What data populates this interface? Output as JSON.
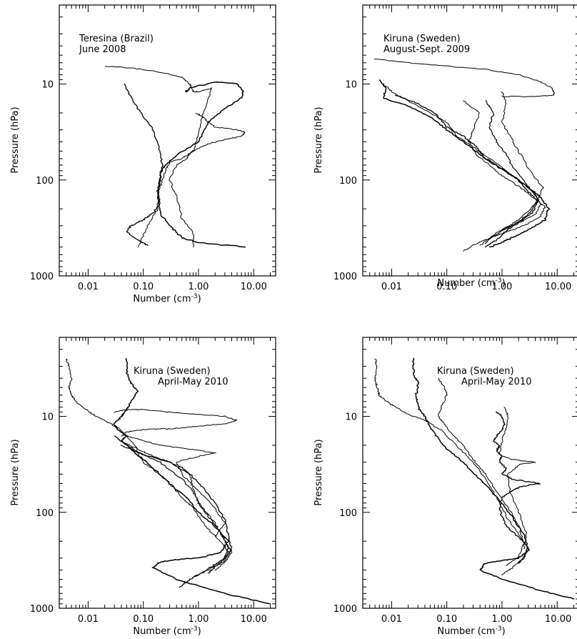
{
  "chart_data": [
    {
      "type": "line",
      "annotation": [
        "Teresina (Brazil)",
        "June 2008"
      ],
      "xlabel": "Number (cm",
      "xlabel_exp": "-3",
      "xlabel_close": ")",
      "ylabel": "Pressure (hPa)",
      "x_scale": "log",
      "y_scale": "log",
      "y_inverted": true,
      "xlim": [
        0.003,
        25
      ],
      "ylim": [
        1000,
        1.5
      ],
      "x_ticks": [
        0.01,
        0.1,
        1,
        10
      ],
      "x_tick_labels": [
        "0.01",
        "0.10",
        "1.00",
        "10.00"
      ],
      "y_ticks": [
        10,
        100,
        1000
      ],
      "y_tick_labels": [
        "10",
        "100",
        "1000"
      ],
      "grid": false,
      "series": [
        {
          "x": [
            0.02,
            0.06,
            0.2,
            0.5,
            0.7,
            0.8,
            1.0,
            1.8,
            1.2,
            1.0,
            0.8,
            0.5,
            0.3,
            0.25,
            0.22,
            0.2,
            0.18,
            0.12,
            0.08
          ],
          "y": [
            6.5,
            6.8,
            7.5,
            8.5,
            10,
            12,
            12,
            11,
            20,
            35,
            50,
            60,
            65,
            80,
            100,
            120,
            200,
            300,
            500
          ]
        },
        {
          "x": [
            0.6,
            0.7,
            2.0,
            5.0,
            6.5,
            6.0,
            3.0,
            1.5,
            1.0,
            0.4,
            0.25,
            0.2,
            0.2,
            0.18,
            0.2,
            0.3,
            0.5,
            1.0,
            7.0
          ],
          "y": [
            12,
            11,
            9.5,
            10,
            12,
            14,
            18,
            25,
            40,
            55,
            70,
            85,
            100,
            150,
            220,
            300,
            400,
            450,
            500
          ]
        },
        {
          "x": [
            0.9,
            1.2,
            1.5,
            2.0,
            5.0,
            7.0,
            6.0,
            3.0,
            1.5,
            0.8,
            0.6,
            0.4,
            0.3,
            0.4,
            0.5,
            0.8,
            0.8
          ],
          "y": [
            20,
            22,
            25,
            28,
            30,
            32,
            35,
            38,
            42,
            50,
            60,
            70,
            100,
            150,
            250,
            350,
            500
          ]
        },
        {
          "x": [
            0.045,
            0.06,
            0.09,
            0.15,
            0.2,
            0.22,
            0.2,
            0.18,
            0.2,
            0.15,
            0.1,
            0.06,
            0.05,
            0.08,
            0.12
          ],
          "y": [
            10,
            14,
            20,
            30,
            50,
            70,
            100,
            130,
            180,
            220,
            260,
            300,
            350,
            420,
            480
          ]
        }
      ]
    },
    {
      "type": "line",
      "annotation": [
        "Kiruna (Sweden)",
        "August-Sept. 2009"
      ],
      "xlabel": "Number (cm",
      "xlabel_exp": "-3",
      "xlabel_close": ")",
      "ylabel": "Pressure (hPa)",
      "x_scale": "log",
      "y_scale": "log",
      "y_inverted": true,
      "xlim": [
        0.003,
        25
      ],
      "ylim": [
        1000,
        1.5
      ],
      "x_ticks": [
        0.01,
        0.1,
        1,
        10
      ],
      "x_tick_labels": [
        "0.01",
        "0.10",
        "1.00",
        "10.00"
      ],
      "y_ticks": [
        10,
        100,
        1000
      ],
      "y_tick_labels": [
        "10",
        "100",
        "1000"
      ],
      "grid": false,
      "series": [
        {
          "x": [
            0.005,
            0.02,
            0.1,
            0.5,
            2.0,
            5.0,
            8.0,
            9.0,
            4.0,
            1.0
          ],
          "y": [
            5.5,
            6.0,
            6.5,
            7.0,
            8.0,
            9.5,
            11,
            13,
            13.5,
            13.5
          ]
        },
        {
          "x": [
            0.006,
            0.008,
            0.007,
            0.02,
            0.05,
            0.1,
            0.2,
            0.4,
            0.8,
            1.5,
            3.0,
            5.0,
            7.0,
            6.0,
            4.0,
            2.5,
            1.5,
            1.0,
            0.6
          ],
          "y": [
            9,
            11,
            14,
            17,
            22,
            30,
            40,
            55,
            70,
            90,
            120,
            150,
            200,
            260,
            300,
            350,
            400,
            450,
            500
          ]
        },
        {
          "x": [
            0.007,
            0.01,
            0.02,
            0.05,
            0.1,
            0.15,
            0.3,
            0.6,
            1.2,
            2.5,
            4.0,
            5.0,
            4.0,
            2.0,
            1.0,
            0.6,
            0.4
          ],
          "y": [
            10,
            12,
            15,
            20,
            25,
            35,
            45,
            60,
            80,
            110,
            140,
            180,
            230,
            280,
            330,
            400,
            480
          ]
        },
        {
          "x": [
            0.012,
            0.03,
            0.06,
            0.1,
            0.2,
            0.35,
            0.5,
            0.9,
            1.8,
            3.0,
            4.5,
            3.5,
            2.0,
            1.2,
            0.8,
            0.5
          ],
          "y": [
            13,
            16,
            20,
            28,
            35,
            45,
            60,
            75,
            95,
            130,
            170,
            220,
            280,
            340,
            420,
            500
          ]
        },
        {
          "x": [
            0.2,
            0.4,
            0.3,
            0.25,
            0.35,
            0.6,
            1.0,
            2.2,
            3.5,
            6.0,
            5.0,
            2.5,
            1.0,
            0.4,
            0.2
          ],
          "y": [
            15,
            20,
            30,
            40,
            55,
            70,
            90,
            120,
            150,
            190,
            240,
            300,
            360,
            440,
            550
          ]
        },
        {
          "x": [
            0.5,
            0.7,
            0.6,
            0.8,
            1.2,
            1.6,
            2.8,
            4.5,
            3.0,
            1.5,
            0.7,
            0.5
          ],
          "y": [
            15,
            20,
            28,
            40,
            55,
            75,
            110,
            160,
            230,
            300,
            380,
            460
          ]
        },
        {
          "x": [
            1.0,
            1.2,
            1.0,
            1.4,
            2.0,
            3.2,
            5.5,
            4.0,
            2.0,
            1.0
          ],
          "y": [
            12,
            16,
            25,
            35,
            50,
            80,
            120,
            180,
            260,
            330
          ]
        }
      ]
    },
    {
      "type": "line",
      "annotation": [
        "Kiruna (Sweden)",
        "April-May 2010"
      ],
      "xlabel": "Number (cm",
      "xlabel_exp": "-3",
      "xlabel_close": ")",
      "ylabel": "Pressure (hPa)",
      "x_scale": "log",
      "y_scale": "log",
      "y_inverted": true,
      "xlim": [
        0.003,
        25
      ],
      "ylim": [
        1000,
        1.5
      ],
      "x_ticks": [
        0.01,
        0.1,
        1,
        10
      ],
      "x_tick_labels": [
        "0.01",
        "0.10",
        "1.00",
        "10.00"
      ],
      "y_ticks": [
        10,
        100,
        1000
      ],
      "y_tick_labels": [
        "10",
        "100",
        "1000"
      ],
      "grid": false,
      "series": [
        {
          "x": [
            0.004,
            0.0045,
            0.005,
            0.0045,
            0.005,
            0.006,
            0.008,
            0.012,
            0.02,
            0.04,
            0.07,
            0.1,
            0.2,
            0.35,
            0.5,
            0.8,
            1.0,
            1.5,
            2.5,
            3.5,
            3.0,
            1.5,
            0.8
          ],
          "y": [
            2.5,
            3,
            4,
            5,
            6,
            7,
            8,
            9.5,
            11,
            14,
            20,
            30,
            40,
            55,
            70,
            90,
            110,
            150,
            200,
            260,
            320,
            400,
            480
          ]
        },
        {
          "x": [
            0.05,
            0.05,
            0.06,
            0.08,
            0.06,
            0.05,
            0.04,
            0.03,
            0.035,
            0.05,
            0.04,
            0.06,
            0.1,
            0.18,
            0.3,
            0.6,
            1.0,
            2.0,
            3.5,
            2.5,
            1.0,
            0.4,
            0.2,
            0.15,
            0.4,
            3.0,
            20.0
          ],
          "y": [
            2.5,
            3.5,
            4.5,
            5.5,
            7,
            8.5,
            10,
            12,
            14,
            16,
            18,
            22,
            28,
            38,
            50,
            70,
            100,
            140,
            200,
            260,
            300,
            310,
            330,
            380,
            500,
            700,
            900
          ]
        },
        {
          "x": [
            0.03,
            0.05,
            0.1,
            0.3,
            1.0,
            3.0,
            5.0,
            3.0,
            1.2,
            0.6,
            0.3,
            0.15,
            0.08,
            0.05,
            0.04
          ],
          "y": [
            9,
            8.5,
            8.5,
            9,
            9.5,
            10,
            11,
            12,
            12.5,
            13,
            13.5,
            13.5,
            14,
            14.5,
            16
          ]
        },
        {
          "x": [
            0.03,
            0.05,
            0.1,
            0.3,
            0.7,
            1.2,
            2.0,
            3.0,
            3.5,
            4.0,
            3.0,
            2.0,
            1.2,
            0.7,
            0.45
          ],
          "y": [
            16,
            20,
            25,
            30,
            40,
            55,
            80,
            120,
            180,
            250,
            300,
            350,
            420,
            500,
            600
          ]
        },
        {
          "x": [
            0.04,
            0.08,
            0.15,
            0.3,
            0.5,
            0.7,
            0.8,
            1.0,
            2.0,
            3.0,
            4.0,
            3.0,
            2.0
          ],
          "y": [
            18,
            22,
            26,
            30,
            34,
            40,
            55,
            80,
            130,
            200,
            260,
            330,
            400
          ]
        },
        {
          "x": [
            0.04,
            0.1,
            0.2,
            0.5,
            0.8,
            1.0,
            1.5,
            2.5,
            3.5,
            3.0,
            2.0,
            1.5
          ],
          "y": [
            20,
            25,
            30,
            45,
            60,
            80,
            110,
            160,
            230,
            300,
            370,
            430
          ]
        },
        {
          "x": [
            0.05,
            0.2,
            0.8,
            2.0,
            1.0,
            0.4,
            0.5,
            1.0,
            2.0,
            3.0,
            2.0
          ],
          "y": [
            16,
            20,
            22,
            24,
            26,
            30,
            40,
            60,
            90,
            130,
            180
          ]
        }
      ]
    },
    {
      "type": "line",
      "annotation": [
        "Kiruna (Sweden)",
        "April-May 2010"
      ],
      "xlabel": "Number (cm",
      "xlabel_exp": "-3",
      "xlabel_close": ")",
      "ylabel": "Pressure (hPa)",
      "x_scale": "log",
      "y_scale": "log",
      "y_inverted": true,
      "xlim": [
        0.003,
        25
      ],
      "ylim": [
        1000,
        1.5
      ],
      "x_ticks": [
        0.01,
        0.1,
        1,
        10
      ],
      "x_tick_labels": [
        "0.01",
        "0.10",
        "1.00",
        "10.00"
      ],
      "y_ticks": [
        10,
        100,
        1000
      ],
      "y_tick_labels": [
        "10",
        "100",
        "1000"
      ],
      "grid": false,
      "series": [
        {
          "x": [
            0.005,
            0.0055,
            0.005,
            0.0055,
            0.006,
            0.008,
            0.012,
            0.02,
            0.04,
            0.08,
            0.15,
            0.3,
            0.5,
            0.8,
            1.2,
            2.0,
            3.0,
            2.5,
            1.5,
            1.0
          ],
          "y": [
            2.5,
            3,
            4,
            5,
            6,
            7,
            8,
            9.5,
            11,
            14,
            20,
            30,
            45,
            70,
            110,
            170,
            240,
            300,
            380,
            450
          ]
        },
        {
          "x": [
            0.025,
            0.025,
            0.03,
            0.028,
            0.03,
            0.04,
            0.05,
            0.07,
            0.1,
            0.2,
            0.4,
            0.8,
            1.5,
            2.5,
            3.0,
            2.0,
            1.0,
            0.5,
            0.4,
            1.0,
            5.0,
            20.0
          ],
          "y": [
            2.5,
            3.5,
            4.5,
            6,
            8,
            10,
            13,
            17,
            22,
            30,
            45,
            70,
            110,
            170,
            250,
            300,
            320,
            340,
            400,
            500,
            650,
            800
          ]
        },
        {
          "x": [
            0.07,
            0.09,
            0.1,
            0.08,
            0.07,
            0.09,
            0.12,
            0.2,
            0.3,
            0.5,
            0.8,
            1.3,
            2.0,
            2.5,
            2.0,
            1.2
          ],
          "y": [
            4,
            5,
            6,
            8,
            10,
            12,
            15,
            20,
            28,
            40,
            60,
            90,
            140,
            210,
            290,
            360
          ]
        },
        {
          "x": [
            0.8,
            1.0,
            1.1,
            1.0,
            0.8,
            0.7,
            0.9,
            0.8,
            1.0,
            0.9,
            1.2,
            1.0,
            1.5,
            3.0,
            5.0,
            3.0,
            2.0,
            1.5,
            1.0,
            0.9,
            1.0,
            1.2,
            2.0,
            3.0,
            2.5,
            2.0
          ],
          "y": [
            9,
            10,
            12,
            14,
            16,
            18,
            20,
            23,
            26,
            30,
            35,
            40,
            45,
            48,
            50,
            52,
            55,
            60,
            70,
            90,
            110,
            140,
            180,
            230,
            290,
            340
          ]
        },
        {
          "x": [
            1.1,
            1.3,
            1.2,
            1.0,
            0.9,
            1.5,
            4.0,
            2.0,
            1.3,
            1.4,
            2.0,
            2.8,
            2.5
          ],
          "y": [
            8,
            10,
            13,
            18,
            25,
            28,
            30,
            32,
            40,
            60,
            100,
            170,
            240
          ]
        }
      ]
    }
  ]
}
